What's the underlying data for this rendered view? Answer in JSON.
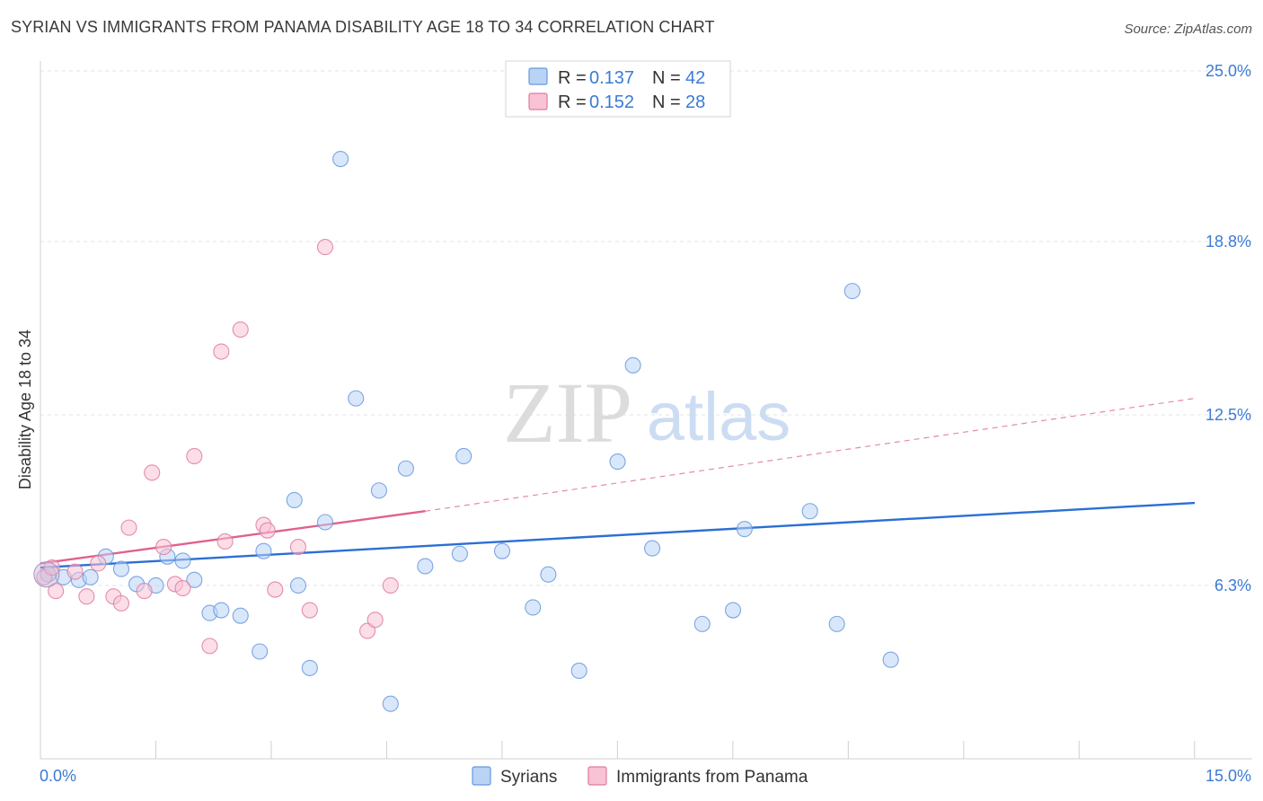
{
  "header": {
    "title": "SYRIAN VS IMMIGRANTS FROM PANAMA DISABILITY AGE 18 TO 34 CORRELATION CHART",
    "source": "Source: ZipAtlas.com"
  },
  "watermark": {
    "zip": "ZIP",
    "atlas": "atlas"
  },
  "legend": {
    "r_label": "R =",
    "n_label": "N =",
    "entries": [
      {
        "name": "Syrians",
        "r": "0.137",
        "n": "42",
        "color": "#6699dd",
        "fill": "#b9d3f5"
      },
      {
        "name": "Immigrants from Panama",
        "r": "0.152",
        "n": "28",
        "color": "#e07aa0",
        "fill": "#f7c3d5"
      }
    ]
  },
  "chart_data": {
    "type": "scatter",
    "title": "SYRIAN VS IMMIGRANTS FROM PANAMA DISABILITY AGE 18 TO 34 CORRELATION CHART",
    "xlabel": "",
    "ylabel": "Disability Age 18 to 34",
    "xlim": [
      0,
      15
    ],
    "ylim": [
      0,
      26.2
    ],
    "x_tick_labels": [
      "0.0%",
      "15.0%"
    ],
    "y_ticks": [
      6.3,
      12.5,
      18.8,
      25.0
    ],
    "y_tick_labels": [
      "6.3%",
      "12.5%",
      "18.8%",
      "25.0%"
    ],
    "grid": true,
    "legend_position": "top-center",
    "series": [
      {
        "name": "Syrians",
        "color": "#6699dd",
        "fill": "#b9d3f5",
        "trend": {
          "x": [
            0,
            15
          ],
          "y": [
            6.95,
            9.3
          ],
          "style": "solid"
        },
        "points": [
          [
            0.1,
            6.7
          ],
          [
            0.3,
            6.6
          ],
          [
            0.5,
            6.5
          ],
          [
            0.65,
            6.6
          ],
          [
            0.85,
            7.35
          ],
          [
            1.05,
            6.9
          ],
          [
            1.25,
            6.35
          ],
          [
            1.5,
            6.3
          ],
          [
            1.65,
            7.35
          ],
          [
            1.85,
            7.2
          ],
          [
            2.0,
            6.5
          ],
          [
            2.2,
            5.3
          ],
          [
            2.35,
            5.4
          ],
          [
            2.6,
            5.2
          ],
          [
            2.85,
            3.9
          ],
          [
            2.9,
            7.55
          ],
          [
            3.3,
            9.4
          ],
          [
            3.35,
            6.3
          ],
          [
            3.5,
            3.3
          ],
          [
            3.7,
            8.6
          ],
          [
            3.9,
            21.8
          ],
          [
            4.1,
            13.1
          ],
          [
            4.4,
            9.75
          ],
          [
            4.55,
            2.0
          ],
          [
            4.75,
            10.55
          ],
          [
            5.0,
            7.0
          ],
          [
            5.45,
            7.45
          ],
          [
            5.5,
            11.0
          ],
          [
            6.0,
            7.55
          ],
          [
            6.4,
            5.5
          ],
          [
            6.6,
            6.7
          ],
          [
            7.0,
            3.2
          ],
          [
            7.5,
            10.8
          ],
          [
            7.7,
            14.3
          ],
          [
            7.95,
            7.65
          ],
          [
            8.6,
            4.9
          ],
          [
            9.0,
            5.4
          ],
          [
            9.15,
            8.35
          ],
          [
            10.0,
            9.0
          ],
          [
            10.35,
            4.9
          ],
          [
            10.55,
            17.0
          ],
          [
            11.05,
            3.6
          ]
        ]
      },
      {
        "name": "Immigrants from Panama",
        "color": "#e07aa0",
        "fill": "#f7c3d5",
        "trend": {
          "x": [
            0,
            5.0
          ],
          "y": [
            7.1,
            9.0
          ],
          "style": "solid",
          "dashed_extension": {
            "x": [
              5.0,
              15
            ],
            "y": [
              9.0,
              13.1
            ]
          }
        },
        "points": [
          [
            0.05,
            6.6
          ],
          [
            0.2,
            6.1
          ],
          [
            0.45,
            6.8
          ],
          [
            0.6,
            5.9
          ],
          [
            0.75,
            7.1
          ],
          [
            0.95,
            5.9
          ],
          [
            1.05,
            5.65
          ],
          [
            1.15,
            8.4
          ],
          [
            1.35,
            6.1
          ],
          [
            1.45,
            10.4
          ],
          [
            1.6,
            7.7
          ],
          [
            1.75,
            6.35
          ],
          [
            1.85,
            6.2
          ],
          [
            2.0,
            11.0
          ],
          [
            2.2,
            4.1
          ],
          [
            2.35,
            14.8
          ],
          [
            2.4,
            7.9
          ],
          [
            2.6,
            15.6
          ],
          [
            2.9,
            8.5
          ],
          [
            2.95,
            8.3
          ],
          [
            3.05,
            6.15
          ],
          [
            3.35,
            7.7
          ],
          [
            3.5,
            5.4
          ],
          [
            3.7,
            18.6
          ],
          [
            4.25,
            4.65
          ],
          [
            4.35,
            5.05
          ],
          [
            4.55,
            6.3
          ],
          [
            0.15,
            6.95
          ]
        ]
      }
    ]
  },
  "bottom_legend": [
    {
      "label": "Syrians"
    },
    {
      "label": "Immigrants from Panama"
    }
  ]
}
